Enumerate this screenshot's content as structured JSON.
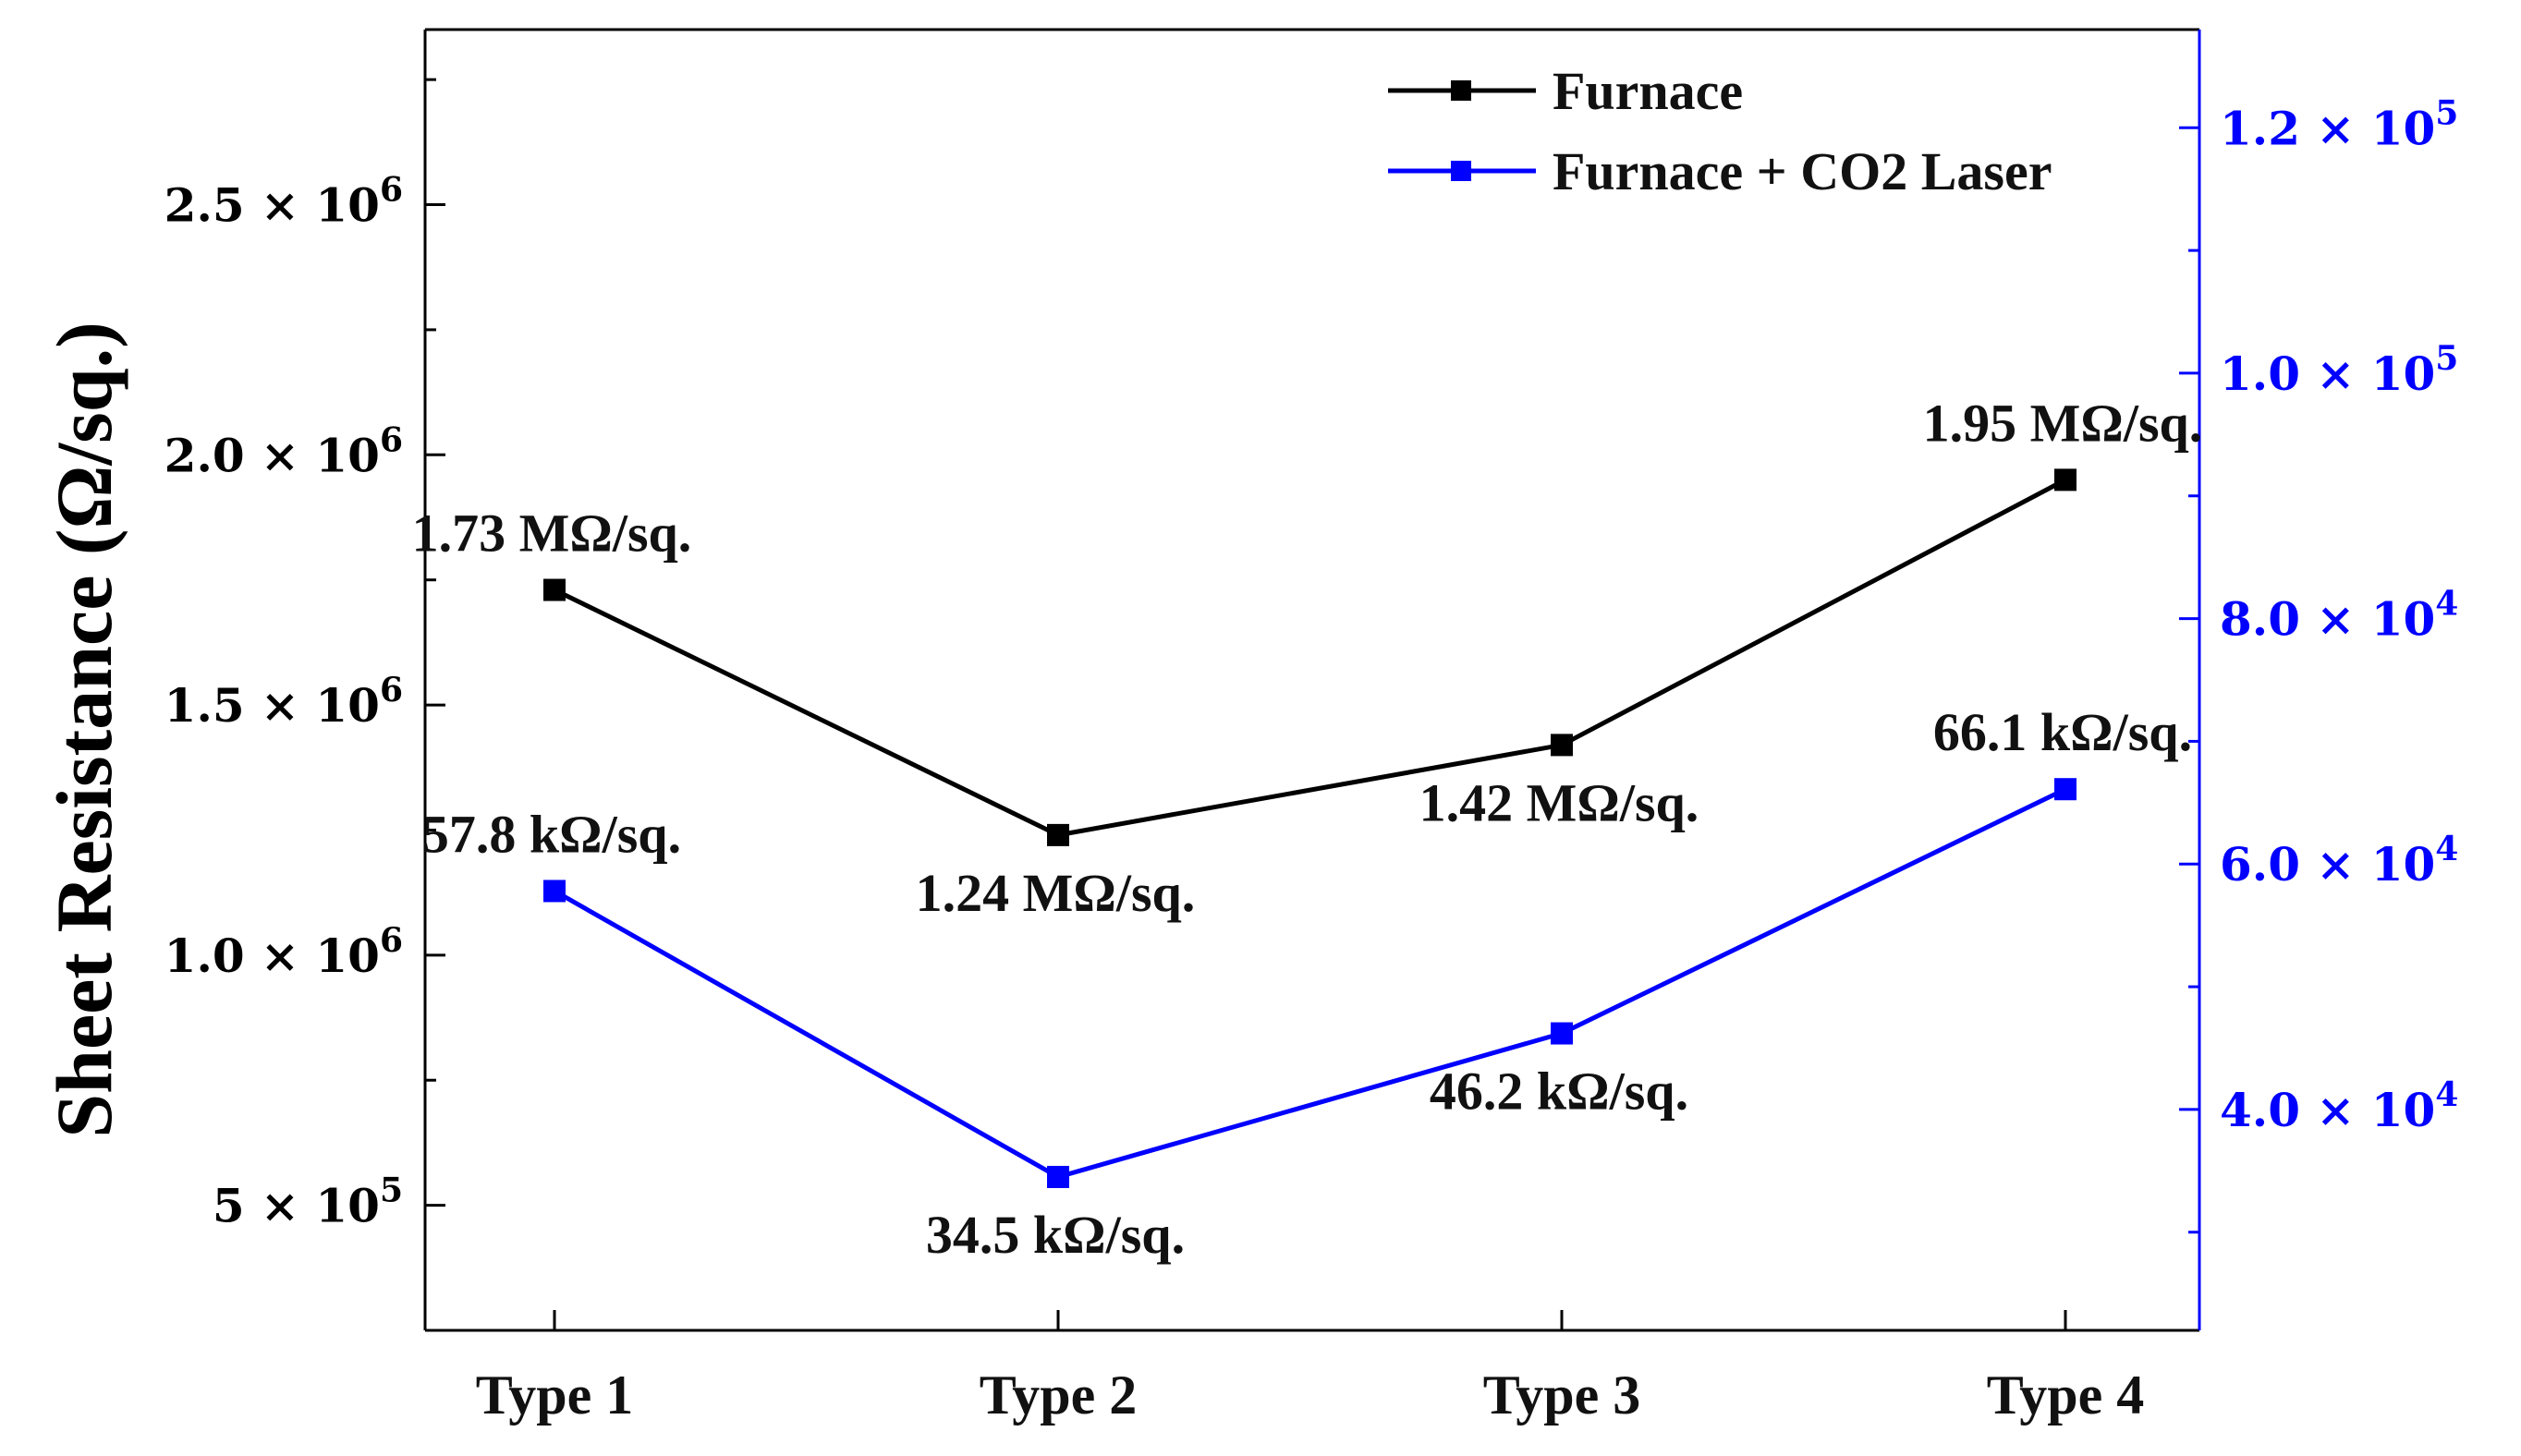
{
  "chart_data": {
    "type": "line",
    "title": "",
    "xlabel": "",
    "ylabel": "Sheet Resistance (Ω/sq.)",
    "categories": [
      "Type 1",
      "Type 2",
      "Type 3",
      "Type 4"
    ],
    "y_left": {
      "lim": [
        250000,
        2850000
      ],
      "major_ticks": [
        500000,
        1000000,
        1500000,
        2000000,
        2500000
      ],
      "minor_ticks": [
        250000,
        750000,
        1250000,
        1750000,
        2250000,
        2750000
      ],
      "tick_labels": [
        {
          "mant": "5",
          "exp": "5"
        },
        {
          "mant": "1.0",
          "exp": "6"
        },
        {
          "mant": "1.5",
          "exp": "6"
        },
        {
          "mant": "2.0",
          "exp": "6"
        },
        {
          "mant": "2.5",
          "exp": "6"
        }
      ]
    },
    "y_right": {
      "lim": [
        22000,
        128000
      ],
      "color": "#0000ff",
      "major_ticks": [
        40000,
        60000,
        80000,
        100000,
        120000
      ],
      "minor_ticks": [
        30000,
        50000,
        70000,
        90000,
        110000
      ],
      "tick_labels": [
        {
          "mant": "4.0",
          "exp": "4"
        },
        {
          "mant": "6.0",
          "exp": "4"
        },
        {
          "mant": "8.0",
          "exp": "4"
        },
        {
          "mant": "1.0",
          "exp": "5"
        },
        {
          "mant": "1.2",
          "exp": "5"
        }
      ]
    },
    "series": [
      {
        "name": "Furnace",
        "axis": "left",
        "color": "#000000",
        "values": [
          1730000,
          1240000,
          1420000,
          1950000
        ],
        "labels": [
          "1.73 MΩ/sq.",
          "1.24 MΩ/sq.",
          "1.42 MΩ/sq.",
          "1.95 MΩ/sq."
        ],
        "label_pos": [
          "above",
          "below",
          "below",
          "above"
        ]
      },
      {
        "name": "Furnace + CO2 Laser",
        "axis": "right",
        "color": "#0000ff",
        "values": [
          57800,
          34500,
          46200,
          66100
        ],
        "labels": [
          "57.8 kΩ/sq.",
          "34.5 kΩ/sq.",
          "46.2 kΩ/sq.",
          "66.1 kΩ/sq."
        ],
        "label_pos": [
          "above",
          "below",
          "below",
          "above"
        ]
      }
    ],
    "legend": "top-right"
  }
}
